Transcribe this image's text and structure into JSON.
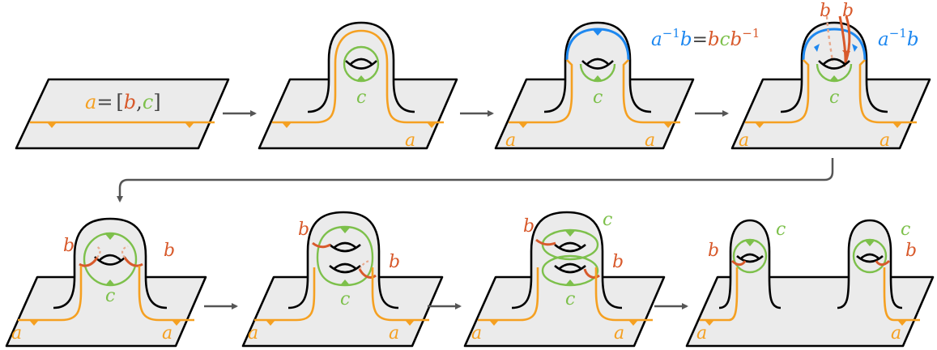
{
  "colors": {
    "orange": "#F5A021",
    "red": "#D85A2C",
    "green": "#7DC04B",
    "blue": "#1E88F0",
    "surface": "#EBEBEB",
    "outline": "#000000",
    "arrow": "#555555",
    "text": "#444444"
  },
  "panel1": {
    "eq_a": "a",
    "eq_sign": "=",
    "eq_open": "[",
    "eq_b": "b",
    "eq_comma": ",",
    "eq_c": "c",
    "eq_close": "]"
  },
  "panel2": {
    "c": "c",
    "a": "a"
  },
  "panel3": {
    "c": "c",
    "a_left": "a",
    "a_right": "a",
    "rel_lhs_a": "a",
    "rel_lhs_exp": "−1",
    "rel_lhs_b": "b",
    "rel_eq": "=",
    "rel_b": "b",
    "rel_c": "c",
    "rel_b2": "b",
    "rel_exp": "−1"
  },
  "panel4": {
    "b1": "b",
    "b2": "b",
    "ab_a": "a",
    "ab_exp": "−1",
    "ab_b": "b",
    "c": "c",
    "a_left": "a",
    "a_right": "a"
  },
  "panel5": {
    "b_left": "b",
    "b_right": "b",
    "c": "c",
    "a_left": "a",
    "a_right": "a"
  },
  "panel6": {
    "b_top": "b",
    "b_right": "b",
    "c": "c",
    "a_left": "a",
    "a_right": "a"
  },
  "panel7": {
    "b_top": "b",
    "b_right": "b",
    "c_top": "c",
    "c_bottom": "c",
    "a_left": "a",
    "a_right": "a"
  },
  "panel8": {
    "b_left": "b",
    "b_right": "b",
    "c_left": "c",
    "c_right": "c",
    "a_left": "a",
    "a_right": "a"
  }
}
